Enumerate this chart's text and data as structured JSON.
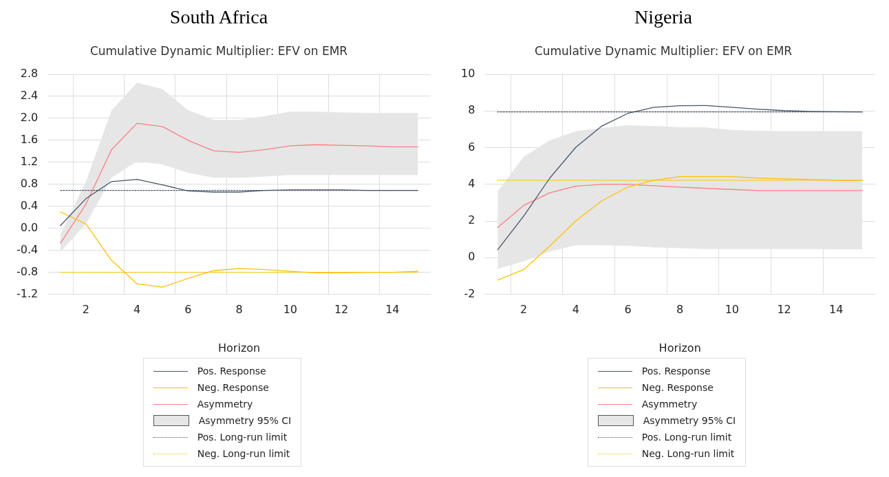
{
  "chart_data": [
    {
      "type": "line",
      "title": "South Africa",
      "subtitle": "Cumulative Dynamic Multiplier: EFV on EMR",
      "xlabel": "Horizon",
      "categories": [
        null,
        "2",
        null,
        "4",
        null,
        "6",
        null,
        "8",
        null,
        "10",
        null,
        "12",
        null,
        "14",
        null
      ],
      "ylim": [
        -1.2,
        2.8
      ],
      "yticks": [
        -1.2,
        -0.8,
        -0.4,
        {
          "value": 0,
          "label": "0.0"
        },
        0.4,
        0.8,
        1.2,
        1.6,
        {
          "value": 2,
          "label": "2.0"
        },
        2.4,
        2.8
      ],
      "grid": true,
      "legend": "bottom",
      "marker": "none",
      "line_style": "solid",
      "series": [
        {
          "name": "Pos. Response",
          "color": "#44546a",
          "values": [
            0.05,
            0.54,
            0.85,
            0.89,
            0.79,
            0.68,
            0.66,
            0.66,
            0.69,
            0.7,
            0.7,
            0.7,
            0.69,
            0.69,
            0.69
          ]
        },
        {
          "name": "Neg. Response",
          "color": "#ffc000",
          "values": [
            0.3,
            0.08,
            -0.58,
            -1.01,
            -1.07,
            -0.91,
            -0.77,
            -0.73,
            -0.75,
            -0.78,
            -0.81,
            -0.81,
            -0.8,
            -0.8,
            -0.78
          ]
        },
        {
          "name": "Asymmetry",
          "color": "#ff7c80",
          "values": [
            -0.27,
            0.44,
            1.43,
            1.91,
            1.85,
            1.6,
            1.41,
            1.38,
            1.43,
            1.5,
            1.52,
            1.51,
            1.5,
            1.48,
            1.48
          ]
        },
        {
          "name": "Asymmetry 95% CI",
          "color": "#e6e6e6",
          "values": [
            null,
            null,
            null,
            null,
            null,
            null,
            null,
            null,
            null,
            null,
            null,
            null,
            null,
            null,
            null
          ],
          "lower": [
            -0.43,
            0.08,
            0.92,
            1.22,
            1.16,
            1.01,
            0.92,
            0.92,
            0.94,
            0.97,
            0.97,
            0.97,
            0.97,
            0.97,
            0.97
          ],
          "upper": [
            -0.11,
            0.85,
            2.14,
            2.65,
            2.53,
            2.15,
            1.97,
            1.97,
            2.04,
            2.12,
            2.12,
            2.11,
            2.1,
            2.1,
            2.1
          ]
        },
        {
          "name": "Pos. Long-run limit",
          "color": "#44546a",
          "line_style": "dotted",
          "values": [
            0.69,
            0.69,
            0.69,
            0.69,
            0.69,
            0.69,
            0.69,
            0.69,
            0.69,
            0.69,
            0.69,
            0.69,
            0.69,
            0.69,
            0.69
          ]
        },
        {
          "name": "Neg. Long-run limit",
          "color": "#ffc000",
          "line_style": "dotted",
          "values": [
            -0.8,
            -0.8,
            -0.8,
            -0.8,
            -0.8,
            -0.8,
            -0.8,
            -0.8,
            -0.8,
            -0.8,
            -0.8,
            -0.8,
            -0.8,
            -0.8,
            -0.8
          ]
        }
      ]
    },
    {
      "type": "line",
      "title": "Nigeria",
      "subtitle": "Cumulative Dynamic Multiplier: EFV on EMR",
      "xlabel": "Horizon",
      "categories": [
        null,
        "2",
        null,
        "4",
        null,
        "6",
        null,
        "8",
        null,
        "10",
        null,
        "12",
        null,
        "14",
        null
      ],
      "ylim": [
        -2,
        10
      ],
      "yticks": [
        -2,
        0,
        2,
        4,
        6,
        8,
        10
      ],
      "grid": true,
      "legend": "bottom",
      "marker": "none",
      "line_style": "solid",
      "series": [
        {
          "name": "Pos. Response",
          "color": "#44546a",
          "values": [
            0.43,
            2.27,
            4.34,
            6.02,
            7.18,
            7.87,
            8.2,
            8.29,
            8.3,
            8.2,
            8.1,
            8.02,
            7.98,
            7.96,
            7.95
          ]
        },
        {
          "name": "Neg. Response",
          "color": "#ffc000",
          "values": [
            -1.22,
            -0.65,
            0.63,
            2.0,
            3.1,
            3.85,
            4.22,
            4.42,
            4.42,
            4.42,
            4.34,
            4.3,
            4.27,
            4.22,
            4.22
          ]
        },
        {
          "name": "Asymmetry",
          "color": "#ff7c80",
          "values": [
            1.65,
            2.85,
            3.54,
            3.9,
            4.0,
            4.0,
            3.92,
            3.85,
            3.78,
            3.72,
            3.66,
            3.66,
            3.66,
            3.66,
            3.66
          ]
        },
        {
          "name": "Asymmetry 95% CI",
          "color": "#e6e6e6",
          "values": [
            null,
            null,
            null,
            null,
            null,
            null,
            null,
            null,
            null,
            null,
            null,
            null,
            null,
            null,
            null
          ],
          "lower": [
            -0.62,
            -0.2,
            0.33,
            0.68,
            0.68,
            0.65,
            0.56,
            0.52,
            0.47,
            0.47,
            0.47,
            0.47,
            0.47,
            0.45,
            0.45
          ],
          "upper": [
            3.62,
            5.5,
            6.4,
            6.9,
            7.07,
            7.22,
            7.18,
            7.12,
            7.1,
            6.97,
            6.92,
            6.9,
            6.9,
            6.9,
            6.9
          ]
        },
        {
          "name": "Pos. Long-run limit",
          "color": "#44546a",
          "line_style": "dotted",
          "values": [
            7.95,
            7.95,
            7.95,
            7.95,
            7.95,
            7.95,
            7.95,
            7.95,
            7.95,
            7.95,
            7.95,
            7.95,
            7.95,
            7.95,
            7.95
          ]
        },
        {
          "name": "Neg. Long-run limit",
          "color": "#ffc000",
          "line_style": "dotted",
          "values": [
            4.22,
            4.22,
            4.22,
            4.22,
            4.22,
            4.22,
            4.22,
            4.22,
            4.22,
            4.22,
            4.22,
            4.22,
            4.22,
            4.22,
            4.22
          ]
        }
      ]
    }
  ]
}
